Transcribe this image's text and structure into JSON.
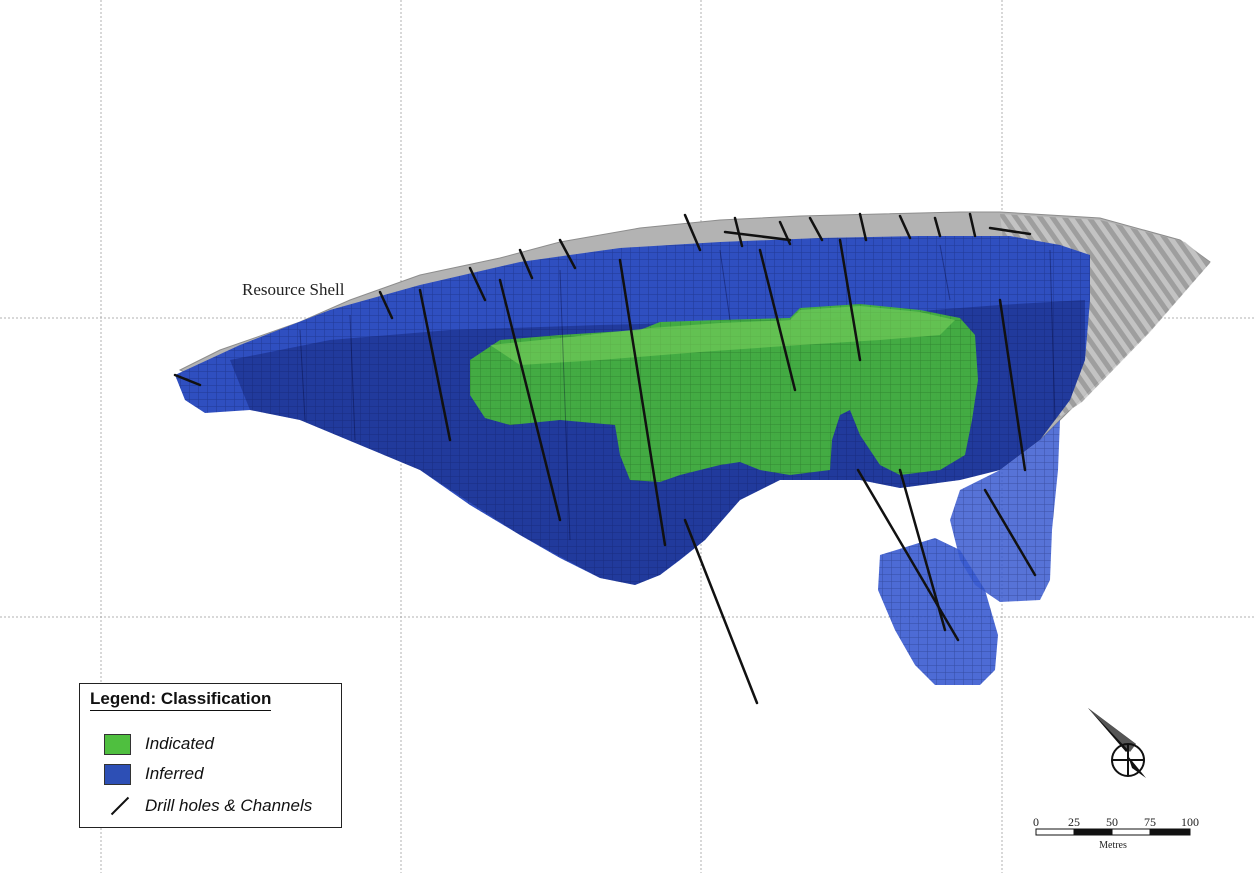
{
  "labels": {
    "resource_shell": "Resource Shell"
  },
  "legend": {
    "title": "Legend: Classification",
    "items": [
      {
        "label": "Indicated",
        "color": "#4fbf3f"
      },
      {
        "label": "Inferred",
        "color": "#2d4fb5"
      },
      {
        "label": "Drill holes & Channels",
        "color": "#111111"
      }
    ]
  },
  "scale_bar": {
    "ticks": [
      "0",
      "25",
      "50",
      "75",
      "100"
    ],
    "unit": "Metres"
  },
  "north_arrow": {
    "icon": "north-arrow-icon"
  },
  "colors": {
    "shell": "#a9a9a9",
    "inferred": "#2f4fc0",
    "indicated": "#47b83a",
    "grid": "#b0b0b0"
  }
}
